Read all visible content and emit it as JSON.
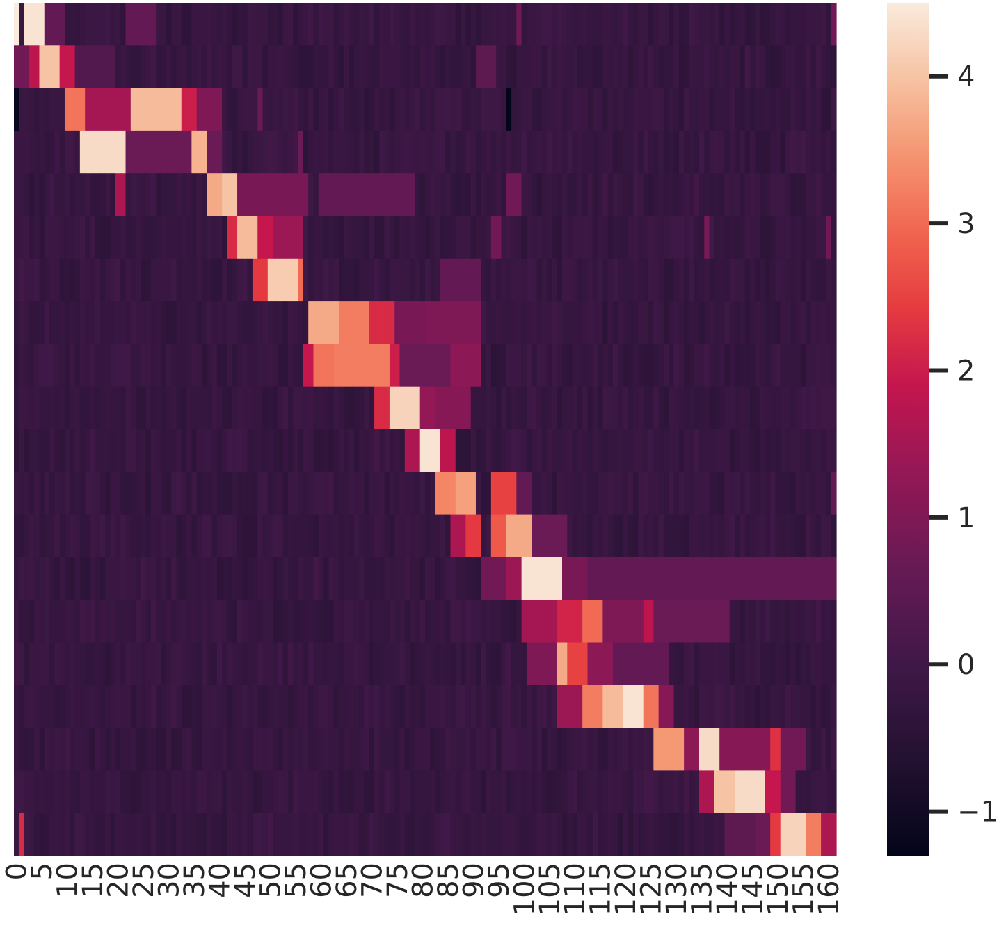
{
  "chart_data": {
    "type": "heatmap",
    "title": "",
    "xlabel": "",
    "ylabel": "",
    "x_tick_labels": [
      "0",
      "5",
      "10",
      "15",
      "20",
      "25",
      "30",
      "35",
      "40",
      "45",
      "50",
      "55",
      "60",
      "65",
      "70",
      "75",
      "80",
      "85",
      "90",
      "95",
      "100",
      "105",
      "110",
      "115",
      "120",
      "125",
      "130",
      "135",
      "140",
      "145",
      "150",
      "155",
      "160"
    ],
    "y_tick_labels": [],
    "n_cols": 162,
    "n_rows": 20,
    "colorscale": "rocket",
    "colorbar": {
      "vmin": -1.3,
      "vmax": 4.5,
      "ticks": [
        -1,
        0,
        1,
        2,
        3,
        4
      ],
      "tick_labels": [
        "−1",
        "0",
        "1",
        "2",
        "3",
        "4"
      ]
    },
    "background_value": -0.2,
    "hot_bands": [
      {
        "row": 0,
        "segments": [
          [
            0,
            0,
            4.5
          ],
          [
            2,
            5,
            4.4
          ],
          [
            6,
            9,
            0.6
          ],
          [
            22,
            27,
            0.6
          ],
          [
            99,
            99,
            0.8
          ],
          [
            161,
            161,
            0.8
          ]
        ]
      },
      {
        "row": 1,
        "segments": [
          [
            0,
            2,
            0.8
          ],
          [
            3,
            4,
            1.8
          ],
          [
            5,
            8,
            4.0
          ],
          [
            9,
            11,
            1.9
          ],
          [
            12,
            19,
            0.3
          ],
          [
            91,
            94,
            0.5
          ]
        ]
      },
      {
        "row": 2,
        "segments": [
          [
            0,
            0,
            -1.2
          ],
          [
            10,
            13,
            3.1
          ],
          [
            14,
            22,
            1.5
          ],
          [
            23,
            32,
            3.9
          ],
          [
            33,
            35,
            2.0
          ],
          [
            36,
            40,
            1.0
          ],
          [
            48,
            48,
            0.7
          ],
          [
            97,
            97,
            -1.3
          ]
        ]
      },
      {
        "row": 3,
        "segments": [
          [
            13,
            21,
            4.3
          ],
          [
            22,
            34,
            0.7
          ],
          [
            35,
            37,
            3.8
          ],
          [
            38,
            40,
            0.7
          ],
          [
            56,
            56,
            0.7
          ]
        ]
      },
      {
        "row": 4,
        "segments": [
          [
            20,
            21,
            1.6
          ],
          [
            38,
            40,
            3.7
          ],
          [
            41,
            43,
            4.0
          ],
          [
            44,
            57,
            0.9
          ],
          [
            60,
            78,
            0.6
          ],
          [
            97,
            99,
            0.8
          ]
        ]
      },
      {
        "row": 5,
        "segments": [
          [
            42,
            43,
            2.2
          ],
          [
            44,
            47,
            3.9
          ],
          [
            48,
            50,
            1.9
          ],
          [
            51,
            56,
            1.4
          ],
          [
            94,
            95,
            0.8
          ],
          [
            136,
            136,
            0.9
          ],
          [
            160,
            160,
            0.8
          ]
        ]
      },
      {
        "row": 6,
        "segments": [
          [
            47,
            49,
            2.4
          ],
          [
            50,
            55,
            4.1
          ],
          [
            56,
            56,
            3.0
          ],
          [
            84,
            91,
            0.6
          ]
        ]
      },
      {
        "row": 7,
        "segments": [
          [
            58,
            63,
            3.7
          ],
          [
            64,
            69,
            3.2
          ],
          [
            70,
            74,
            2.2
          ],
          [
            75,
            80,
            0.9
          ],
          [
            81,
            91,
            1.0
          ]
        ]
      },
      {
        "row": 8,
        "segments": [
          [
            57,
            58,
            1.9
          ],
          [
            59,
            62,
            3.1
          ],
          [
            63,
            73,
            3.2
          ],
          [
            74,
            75,
            2.0
          ],
          [
            76,
            85,
            0.7
          ],
          [
            86,
            91,
            1.2
          ]
        ]
      },
      {
        "row": 9,
        "segments": [
          [
            71,
            73,
            2.2
          ],
          [
            74,
            79,
            4.2
          ],
          [
            80,
            82,
            1.3
          ],
          [
            83,
            89,
            1.1
          ]
        ]
      },
      {
        "row": 10,
        "segments": [
          [
            77,
            79,
            1.6
          ],
          [
            80,
            83,
            4.4
          ],
          [
            84,
            86,
            1.8
          ]
        ]
      },
      {
        "row": 11,
        "segments": [
          [
            83,
            86,
            3.3
          ],
          [
            87,
            90,
            3.6
          ],
          [
            94,
            98,
            2.5
          ],
          [
            99,
            101,
            0.6
          ],
          [
            161,
            161,
            0.6
          ]
        ]
      },
      {
        "row": 12,
        "segments": [
          [
            86,
            88,
            1.6
          ],
          [
            89,
            91,
            2.4
          ],
          [
            94,
            96,
            2.8
          ],
          [
            97,
            101,
            3.7
          ],
          [
            102,
            108,
            0.7
          ]
        ]
      },
      {
        "row": 13,
        "segments": [
          [
            92,
            96,
            0.8
          ],
          [
            97,
            99,
            1.4
          ],
          [
            100,
            107,
            4.4
          ],
          [
            108,
            112,
            0.9
          ],
          [
            113,
            161,
            0.6
          ]
        ]
      },
      {
        "row": 14,
        "segments": [
          [
            100,
            106,
            1.5
          ],
          [
            107,
            111,
            2.1
          ],
          [
            112,
            115,
            3.0
          ],
          [
            116,
            123,
            1.0
          ],
          [
            124,
            125,
            1.8
          ],
          [
            126,
            140,
            0.7
          ]
        ]
      },
      {
        "row": 15,
        "segments": [
          [
            101,
            106,
            1.0
          ],
          [
            107,
            108,
            3.7
          ],
          [
            109,
            112,
            2.5
          ],
          [
            113,
            117,
            1.2
          ],
          [
            118,
            128,
            0.6
          ]
        ]
      },
      {
        "row": 16,
        "segments": [
          [
            107,
            111,
            1.4
          ],
          [
            112,
            115,
            3.2
          ],
          [
            116,
            119,
            3.9
          ],
          [
            120,
            123,
            4.4
          ],
          [
            124,
            126,
            3.1
          ],
          [
            127,
            129,
            1.1
          ]
        ]
      },
      {
        "row": 17,
        "segments": [
          [
            126,
            131,
            3.5
          ],
          [
            132,
            134,
            1.2
          ],
          [
            135,
            138,
            4.3
          ],
          [
            139,
            148,
            1.1
          ],
          [
            149,
            150,
            2.3
          ],
          [
            151,
            155,
            0.8
          ]
        ]
      },
      {
        "row": 18,
        "segments": [
          [
            135,
            137,
            1.6
          ],
          [
            138,
            141,
            4.0
          ],
          [
            142,
            147,
            4.3
          ],
          [
            148,
            150,
            1.9
          ],
          [
            151,
            153,
            0.8
          ]
        ]
      },
      {
        "row": 19,
        "segments": [
          [
            1,
            1,
            2.2
          ],
          [
            140,
            145,
            0.5
          ],
          [
            146,
            148,
            0.7
          ],
          [
            149,
            150,
            2.4
          ],
          [
            151,
            155,
            4.2
          ],
          [
            156,
            158,
            3.2
          ],
          [
            159,
            161,
            1.6
          ]
        ]
      }
    ]
  }
}
